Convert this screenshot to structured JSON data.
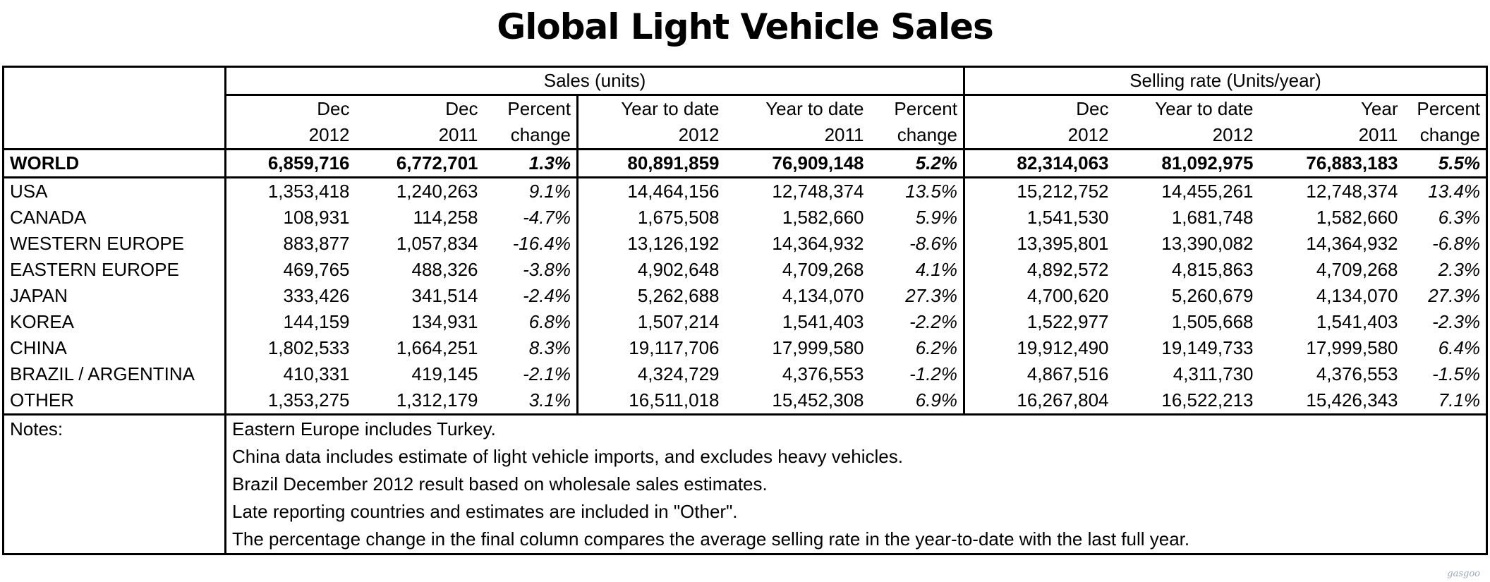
{
  "title": "Global Light Vehicle Sales",
  "groups": {
    "sales": "Sales (units)",
    "rate": "Selling rate (Units/year)"
  },
  "headers": {
    "top": [
      "Dec",
      "Dec",
      "Percent",
      "Year to date",
      "Year to date",
      "Percent",
      "Dec",
      "Year to date",
      "Year",
      "Percent"
    ],
    "bottom": [
      "2012",
      "2011",
      "change",
      "2012",
      "2011",
      "change",
      "2012",
      "2012",
      "2011",
      "change"
    ]
  },
  "rows": [
    {
      "label": "WORLD",
      "values": [
        "6,859,716",
        "6,772,701",
        "1.3%",
        "80,891,859",
        "76,909,148",
        "5.2%",
        "82,314,063",
        "81,092,975",
        "76,883,183",
        "5.5%"
      ]
    },
    {
      "label": "USA",
      "values": [
        "1,353,418",
        "1,240,263",
        "9.1%",
        "14,464,156",
        "12,748,374",
        "13.5%",
        "15,212,752",
        "14,455,261",
        "12,748,374",
        "13.4%"
      ]
    },
    {
      "label": "CANADA",
      "values": [
        "108,931",
        "114,258",
        "-4.7%",
        "1,675,508",
        "1,582,660",
        "5.9%",
        "1,541,530",
        "1,681,748",
        "1,582,660",
        "6.3%"
      ]
    },
    {
      "label": "WESTERN EUROPE",
      "values": [
        "883,877",
        "1,057,834",
        "-16.4%",
        "13,126,192",
        "14,364,932",
        "-8.6%",
        "13,395,801",
        "13,390,082",
        "14,364,932",
        "-6.8%"
      ]
    },
    {
      "label": "EASTERN EUROPE",
      "values": [
        "469,765",
        "488,326",
        "-3.8%",
        "4,902,648",
        "4,709,268",
        "4.1%",
        "4,892,572",
        "4,815,863",
        "4,709,268",
        "2.3%"
      ]
    },
    {
      "label": "JAPAN",
      "values": [
        "333,426",
        "341,514",
        "-2.4%",
        "5,262,688",
        "4,134,070",
        "27.3%",
        "4,700,620",
        "5,260,679",
        "4,134,070",
        "27.3%"
      ]
    },
    {
      "label": "KOREA",
      "values": [
        "144,159",
        "134,931",
        "6.8%",
        "1,507,214",
        "1,541,403",
        "-2.2%",
        "1,522,977",
        "1,505,668",
        "1,541,403",
        "-2.3%"
      ]
    },
    {
      "label": "CHINA",
      "values": [
        "1,802,533",
        "1,664,251",
        "8.3%",
        "19,117,706",
        "17,999,580",
        "6.2%",
        "19,912,490",
        "19,149,733",
        "17,999,580",
        "6.4%"
      ]
    },
    {
      "label": "BRAZIL / ARGENTINA",
      "values": [
        "410,331",
        "419,145",
        "-2.1%",
        "4,324,729",
        "4,376,553",
        "-1.2%",
        "4,867,516",
        "4,311,730",
        "4,376,553",
        "-1.5%"
      ]
    },
    {
      "label": "OTHER",
      "values": [
        "1,353,275",
        "1,312,179",
        "3.1%",
        "16,511,018",
        "15,452,308",
        "6.9%",
        "16,267,804",
        "16,522,213",
        "15,426,343",
        "7.1%"
      ]
    }
  ],
  "notes": {
    "label": "Notes:",
    "lines": [
      "Eastern Europe includes Turkey.",
      "China data includes estimate of light vehicle imports, and excludes heavy vehicles.",
      "Brazil December 2012 result based on wholesale sales estimates.",
      "Late reporting countries and estimates are included in \"Other\".",
      "The percentage change in the final column compares the average selling rate in the year-to-date with the last full year."
    ]
  },
  "watermark": "gasgoo"
}
